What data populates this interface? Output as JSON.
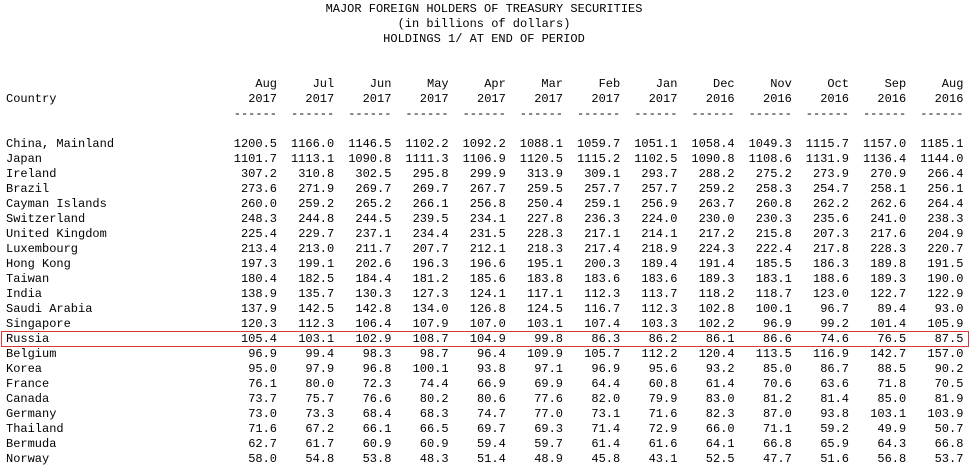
{
  "header": {
    "lines": [
      "MAJOR FOREIGN HOLDERS OF TREASURY SECURITIES",
      "(in billions of dollars)",
      "HOLDINGS 1/ AT END OF PERIOD"
    ]
  },
  "table": {
    "country_label": "Country",
    "columns": [
      {
        "month": "Aug",
        "year": "2017",
        "rule": "------"
      },
      {
        "month": "Jul",
        "year": "2017",
        "rule": "------"
      },
      {
        "month": "Jun",
        "year": "2017",
        "rule": "------"
      },
      {
        "month": "May",
        "year": "2017",
        "rule": "------"
      },
      {
        "month": "Apr",
        "year": "2017",
        "rule": "------"
      },
      {
        "month": "Mar",
        "year": "2017",
        "rule": "------"
      },
      {
        "month": "Feb",
        "year": "2017",
        "rule": "------"
      },
      {
        "month": "Jan",
        "year": "2017",
        "rule": "------"
      },
      {
        "month": "Dec",
        "year": "2016",
        "rule": "------"
      },
      {
        "month": "Nov",
        "year": "2016",
        "rule": "------"
      },
      {
        "month": "Oct",
        "year": "2016",
        "rule": "------"
      },
      {
        "month": "Sep",
        "year": "2016",
        "rule": "------"
      },
      {
        "month": "Aug",
        "year": "2016",
        "rule": "------"
      }
    ],
    "rows": [
      {
        "country": "China, Mainland",
        "values": [
          "1200.5",
          "1166.0",
          "1146.5",
          "1102.2",
          "1092.2",
          "1088.1",
          "1059.7",
          "1051.1",
          "1058.4",
          "1049.3",
          "1115.7",
          "1157.0",
          "1185.1"
        ]
      },
      {
        "country": "Japan",
        "values": [
          "1101.7",
          "1113.1",
          "1090.8",
          "1111.3",
          "1106.9",
          "1120.5",
          "1115.2",
          "1102.5",
          "1090.8",
          "1108.6",
          "1131.9",
          "1136.4",
          "1144.0"
        ]
      },
      {
        "country": "Ireland",
        "values": [
          "307.2",
          "310.8",
          "302.5",
          "295.8",
          "299.9",
          "313.9",
          "309.1",
          "293.7",
          "288.2",
          "275.2",
          "273.9",
          "270.9",
          "266.4"
        ]
      },
      {
        "country": "Brazil",
        "values": [
          "273.6",
          "271.9",
          "269.7",
          "269.7",
          "267.7",
          "259.5",
          "257.7",
          "257.7",
          "259.2",
          "258.3",
          "254.7",
          "258.1",
          "256.1"
        ]
      },
      {
        "country": "Cayman Islands",
        "values": [
          "260.0",
          "259.2",
          "265.2",
          "266.1",
          "256.8",
          "250.4",
          "259.1",
          "256.9",
          "263.7",
          "260.8",
          "262.2",
          "262.6",
          "264.4"
        ]
      },
      {
        "country": "Switzerland",
        "values": [
          "248.3",
          "244.8",
          "244.5",
          "239.5",
          "234.1",
          "227.8",
          "236.3",
          "224.0",
          "230.0",
          "230.3",
          "235.6",
          "241.0",
          "238.3"
        ]
      },
      {
        "country": "United Kingdom",
        "values": [
          "225.4",
          "229.7",
          "237.1",
          "234.4",
          "231.5",
          "228.3",
          "217.1",
          "214.1",
          "217.2",
          "215.8",
          "207.3",
          "217.6",
          "204.9"
        ]
      },
      {
        "country": "Luxembourg",
        "values": [
          "213.4",
          "213.0",
          "211.7",
          "207.7",
          "212.1",
          "218.3",
          "217.4",
          "218.9",
          "224.3",
          "222.4",
          "217.8",
          "228.3",
          "220.7"
        ]
      },
      {
        "country": "Hong Kong",
        "values": [
          "197.3",
          "199.1",
          "202.6",
          "196.3",
          "196.6",
          "195.1",
          "200.3",
          "189.4",
          "191.4",
          "185.5",
          "186.3",
          "189.8",
          "191.5"
        ]
      },
      {
        "country": "Taiwan",
        "values": [
          "180.4",
          "182.5",
          "184.4",
          "181.2",
          "185.6",
          "183.8",
          "183.6",
          "183.6",
          "189.3",
          "183.1",
          "188.6",
          "189.3",
          "190.0"
        ]
      },
      {
        "country": "India",
        "values": [
          "138.9",
          "135.7",
          "130.3",
          "127.3",
          "124.1",
          "117.1",
          "112.3",
          "113.7",
          "118.2",
          "118.7",
          "123.0",
          "122.7",
          "122.9"
        ]
      },
      {
        "country": "Saudi Arabia",
        "values": [
          "137.9",
          "142.5",
          "142.8",
          "134.0",
          "126.8",
          "124.5",
          "116.7",
          "112.3",
          "102.8",
          "100.1",
          "96.7",
          "89.4",
          "93.0"
        ]
      },
      {
        "country": "Singapore",
        "values": [
          "120.3",
          "112.3",
          "106.4",
          "107.9",
          "107.0",
          "103.1",
          "107.4",
          "103.3",
          "102.2",
          "96.9",
          "99.2",
          "101.4",
          "105.9"
        ]
      },
      {
        "country": "Russia",
        "highlighted": true,
        "values": [
          "105.4",
          "103.1",
          "102.9",
          "108.7",
          "104.9",
          "99.8",
          "86.3",
          "86.2",
          "86.1",
          "86.6",
          "74.6",
          "76.5",
          "87.5"
        ]
      },
      {
        "country": "Belgium",
        "values": [
          "96.9",
          "99.4",
          "98.3",
          "98.7",
          "96.4",
          "109.9",
          "105.7",
          "112.2",
          "120.4",
          "113.5",
          "116.9",
          "142.7",
          "157.0"
        ]
      },
      {
        "country": "Korea",
        "values": [
          "95.0",
          "97.9",
          "96.8",
          "100.1",
          "93.8",
          "97.1",
          "96.9",
          "95.6",
          "93.2",
          "85.0",
          "86.7",
          "88.5",
          "90.2"
        ]
      },
      {
        "country": "France",
        "values": [
          "76.1",
          "80.0",
          "72.3",
          "74.4",
          "66.9",
          "69.9",
          "64.4",
          "60.8",
          "61.4",
          "70.6",
          "63.6",
          "71.8",
          "70.5"
        ]
      },
      {
        "country": "Canada",
        "values": [
          "73.7",
          "75.7",
          "76.6",
          "80.2",
          "80.6",
          "77.6",
          "82.0",
          "79.9",
          "83.0",
          "81.2",
          "81.4",
          "85.0",
          "81.9"
        ]
      },
      {
        "country": "Germany",
        "values": [
          "73.0",
          "73.3",
          "68.4",
          "68.3",
          "74.7",
          "77.0",
          "73.1",
          "71.6",
          "82.3",
          "87.0",
          "93.8",
          "103.1",
          "103.9"
        ]
      },
      {
        "country": "Thailand",
        "values": [
          "71.6",
          "67.2",
          "66.1",
          "66.5",
          "69.7",
          "69.3",
          "71.4",
          "72.9",
          "66.0",
          "71.1",
          "59.2",
          "49.9",
          "50.7"
        ]
      },
      {
        "country": "Bermuda",
        "values": [
          "62.7",
          "61.7",
          "60.9",
          "60.9",
          "59.4",
          "59.7",
          "61.4",
          "61.6",
          "64.1",
          "66.8",
          "65.9",
          "64.3",
          "66.8"
        ]
      },
      {
        "country": "Norway",
        "values": [
          "58.0",
          "54.8",
          "53.8",
          "48.3",
          "51.4",
          "48.9",
          "45.8",
          "43.1",
          "52.5",
          "47.7",
          "51.6",
          "56.8",
          "53.7"
        ]
      }
    ]
  }
}
